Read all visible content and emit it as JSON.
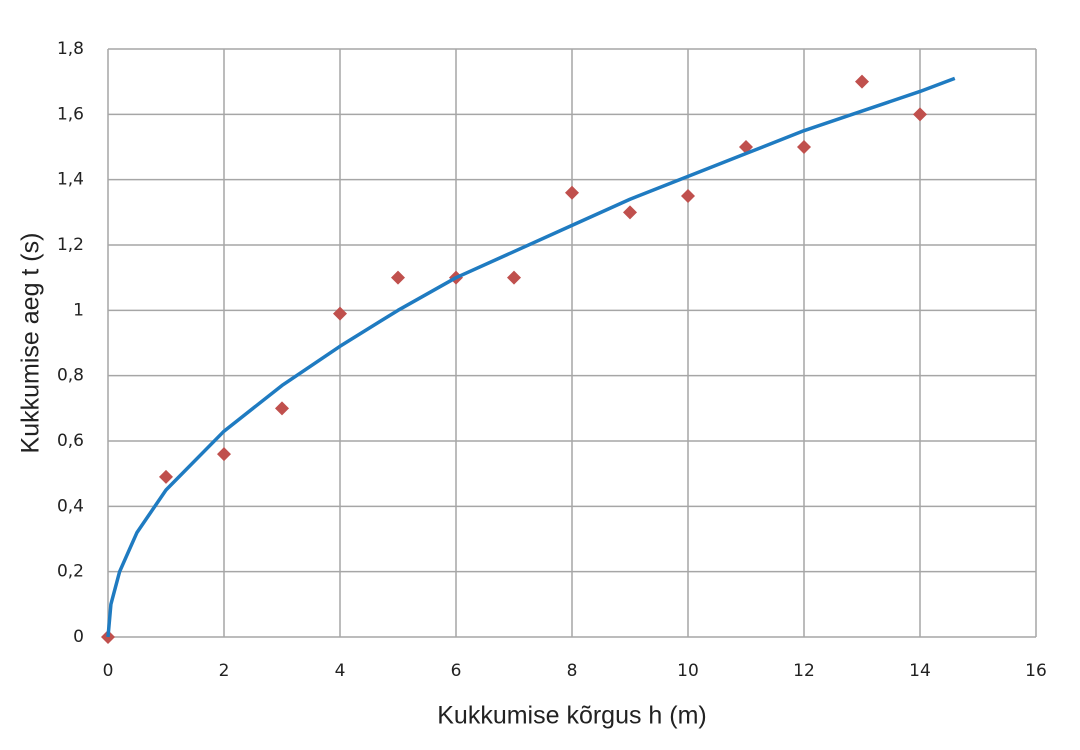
{
  "chart_data": {
    "type": "scatter",
    "x_label": "Kukkumise kõrgus h (m)",
    "y_label": "Kukkumise aeg t (s)",
    "xlim": [
      0,
      16
    ],
    "xticks": [
      0,
      2,
      4,
      6,
      8,
      10,
      12,
      14,
      16
    ],
    "ylim": [
      0,
      1.8
    ],
    "yticks": [
      0,
      {
        "value": 0.2,
        "label": "0,2"
      },
      {
        "value": 0.4,
        "label": "0,4"
      },
      {
        "value": 0.6,
        "label": "0,6"
      },
      {
        "value": 0.8,
        "label": "0,8"
      },
      1,
      {
        "value": 1.2,
        "label": "1,2"
      },
      {
        "value": 1.4,
        "label": "1,4"
      },
      {
        "value": 1.6,
        "label": "1,6"
      },
      {
        "value": 1.8,
        "label": "1,8"
      }
    ],
    "grid": true,
    "series": [
      {
        "kind": "points",
        "color": "#c0504d",
        "x": [
          0,
          1,
          2,
          3,
          4,
          5,
          6,
          7,
          8,
          9,
          10,
          11,
          12,
          13,
          14
        ],
        "values": [
          0,
          0.49,
          0.56,
          0.7,
          0.99,
          1.1,
          1.1,
          1.1,
          1.36,
          1.3,
          1.35,
          1.5,
          1.5,
          1.7,
          1.6
        ]
      },
      {
        "kind": "line",
        "color": "#1f7bc1",
        "x": [
          0,
          0.05,
          0.2,
          0.5,
          1,
          2,
          3,
          4,
          5,
          6,
          7,
          8,
          9,
          10,
          11,
          12,
          13,
          14,
          14.6
        ],
        "values": [
          0,
          0.1,
          0.2,
          0.32,
          0.45,
          0.63,
          0.77,
          0.89,
          1.0,
          1.1,
          1.18,
          1.26,
          1.34,
          1.41,
          1.48,
          1.55,
          1.61,
          1.67,
          1.71
        ]
      }
    ]
  }
}
